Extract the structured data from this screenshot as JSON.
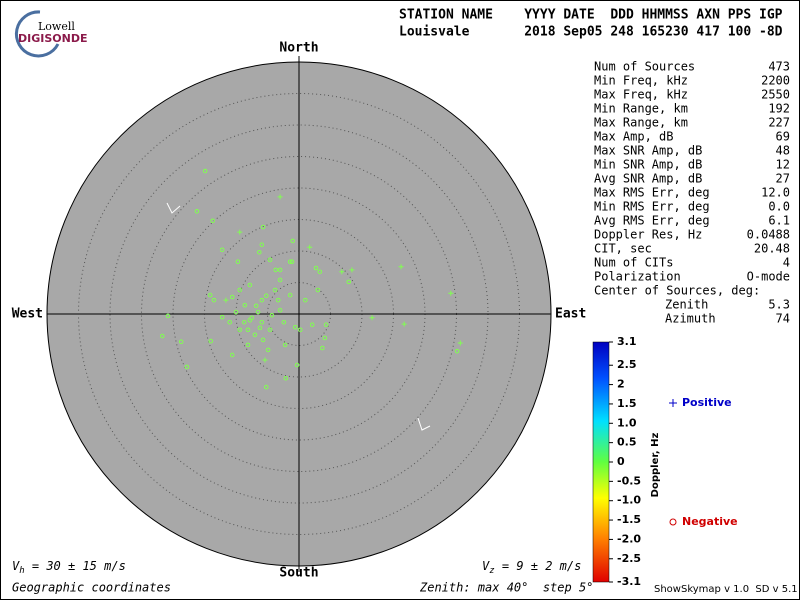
{
  "header": {
    "logo_top": "Lowell",
    "logo_bottom": "DIGISONDE",
    "columns": "STATION NAME    YYYY DATE  DDD HHMMSS AXN PPS IGP",
    "values": "Louisvale       2018 Sep05 248 165230 417 100 -8D"
  },
  "stats": [
    [
      "Num of Sources",
      "473"
    ],
    [
      "Min Freq, kHz",
      "2200"
    ],
    [
      "Max Freq, kHz",
      "2550"
    ],
    [
      "Min Range, km",
      "192"
    ],
    [
      "Max Range, km",
      "227"
    ],
    [
      "Max Amp, dB",
      "69"
    ],
    [
      "Max SNR Amp, dB",
      "48"
    ],
    [
      "Min SNR Amp, dB",
      "12"
    ],
    [
      "Avg SNR Amp, dB",
      "27"
    ],
    [
      "Max RMS Err, deg",
      "12.0"
    ],
    [
      "Min RMS Err, deg",
      "0.0"
    ],
    [
      "Avg RMS Err, deg",
      "6.1"
    ],
    [
      "Doppler Res, Hz",
      "0.0488"
    ],
    [
      "CIT, sec",
      "20.48"
    ],
    [
      "Num of CITs",
      "4"
    ],
    [
      "Polarization",
      "O-mode"
    ],
    [
      "Center of Sources, deg:"
    ],
    [
      "Zenith",
      "5.3"
    ],
    [
      "Azimuth",
      "74"
    ]
  ],
  "footer": {
    "vh": [
      "V",
      "h",
      " = 30 ± 15 m/s"
    ],
    "vz": [
      "V",
      "z",
      " = 9 ± 2 m/s"
    ],
    "coords": "Geographic coordinates",
    "zenith": "Zenith: max 40°  step 5°",
    "version": "ShowSkymap v 1.0  SD v 5.1"
  },
  "chart_data": {
    "type": "scatter",
    "directions": {
      "north": "North",
      "south": "South",
      "west": "West",
      "east": "East"
    },
    "xlim": [
      -40,
      40
    ],
    "ylim": [
      -40,
      40
    ],
    "ring_step": 5,
    "colorbar": {
      "label": "Doppler, Hz",
      "lim": [
        -3.1,
        3.1
      ],
      "ticks": [
        3.1,
        2.5,
        2,
        1.5,
        {
          "value": 1,
          "label": "1.0"
        },
        0.5,
        0,
        -0.5,
        {
          "value": -1,
          "label": "-1.0"
        },
        -1.5,
        {
          "value": -2,
          "label": "-2.0"
        },
        -2.5,
        -3.1
      ]
    },
    "series": [
      {
        "name": "Positive",
        "marker": "plus",
        "color": "#80ff50",
        "legend_color": "#0000c8",
        "x": [
          -3.0,
          16.2,
          6.8,
          24.1,
          16.7,
          25.6,
          -9.4,
          1.7,
          11.6,
          8.4,
          -11.6,
          -5.4
        ],
        "y": [
          18.6,
          7.5,
          6.7,
          3.3,
          -1.6,
          -4.6,
          13.0,
          10.6,
          -0.6,
          7.0,
          2.2,
          -7.3
        ]
      },
      {
        "name": "Negative",
        "marker": "circle",
        "color": "#80ff50",
        "legend_color": "#d00000",
        "x": [
          -14.9,
          -16.2,
          -13.7,
          -5.7,
          -1.0,
          2.7,
          7.9,
          3.3,
          -5.9,
          -6.3,
          -1.4,
          -3.7,
          -7.8,
          -10.6,
          -14.1,
          -12.2,
          -20.8,
          -21.7,
          -18.7,
          -17.8,
          -14.0,
          -10.6,
          -5.2,
          -2.1,
          -0.3,
          3.7,
          -0.6,
          1.0,
          -3.0,
          -6.5,
          -7.8,
          -8.6,
          -4.6,
          -9.4,
          -5.9,
          -3.8,
          -7.0,
          -8.1,
          -4.9,
          -2.2,
          0.2,
          2.1,
          4.1,
          25.1,
          -1.1,
          -3.0,
          -9.7,
          -12.2,
          -4.6,
          -7.5,
          -5.9,
          -4.3,
          -8.7,
          -6.8,
          -5.2,
          -3.3,
          -10.0,
          -6.2,
          -8.1,
          -2.4,
          -11.0,
          -5.7,
          -1.4,
          3.0,
          -9.4,
          -3.0,
          4.3,
          -13.5
        ],
        "y": [
          22.7,
          16.3,
          14.8,
          13.8,
          11.6,
          7.3,
          5.1,
          6.7,
          11.0,
          9.8,
          8.3,
          7.0,
          4.6,
          2.7,
          3.0,
          -0.5,
          -0.3,
          -3.5,
          -4.4,
          -8.4,
          -4.3,
          -6.5,
          -11.6,
          -10.2,
          -8.1,
          -5.4,
          -2.1,
          2.2,
          0.6,
          0.3,
          -1.0,
          1.4,
          -2.5,
          -2.5,
          2.2,
          3.8,
          -3.3,
          -4.9,
          -5.7,
          -4.9,
          -2.5,
          -1.7,
          -3.8,
          -5.9,
          8.3,
          5.4,
          8.3,
          10.2,
          8.6,
          -0.6,
          -1.3,
          -0.2,
          -1.3,
          1.3,
          2.9,
          2.2,
          0.3,
          -2.2,
          -2.5,
          -1.3,
          -1.3,
          -4.1,
          3.0,
          3.8,
          3.8,
          7.0,
          -1.7,
          2.2
        ]
      }
    ]
  }
}
